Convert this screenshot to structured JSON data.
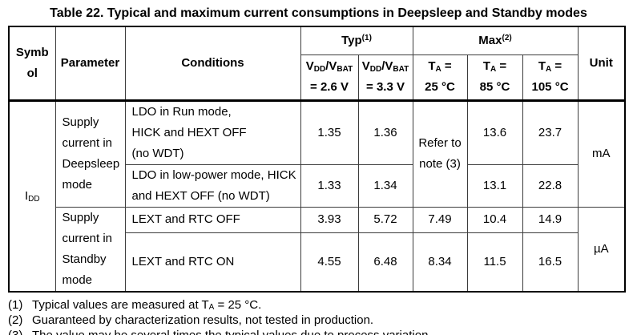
{
  "title": "Table 22. Typical and maximum current consumptions in Deepsleep and Standby modes",
  "table": {
    "header": {
      "symbol": "Symbol",
      "parameter": "Parameter",
      "conditions": "Conditions",
      "typ_group": {
        "label": "Typ",
        "note_ref": "(1)"
      },
      "max_group": {
        "label": "Max",
        "note_ref": "(2)"
      },
      "typ_cols": [
        {
          "sym_a": "V",
          "sub_a": "DD",
          "sym_b": "/V",
          "sub_b": "BAT",
          "value_line": "= 2.6 V"
        },
        {
          "sym_a": "V",
          "sub_a": "DD",
          "sym_b": "/V",
          "sub_b": "BAT",
          "value_line": "= 3.3 V"
        }
      ],
      "max_cols": [
        {
          "sym": "T",
          "sub": "A",
          "suffix": " =",
          "value_line": "25 °C"
        },
        {
          "sym": "T",
          "sub": "A",
          "suffix": " =",
          "value_line": "85 °C"
        },
        {
          "sym": "T",
          "sub": "A",
          "suffix": " =",
          "value_line": "105 °C"
        }
      ],
      "unit": "Unit"
    },
    "symbol_cell": {
      "main": "I",
      "sub": "DD"
    },
    "groups": [
      {
        "parameter": "Supply current in Deepsleep mode",
        "unit": "mA"
      },
      {
        "parameter": "Supply current in Standby mode",
        "unit": "µA"
      }
    ],
    "merged_max25": [
      "Refer to",
      "note (3)"
    ],
    "rows": [
      {
        "conditions": [
          "LDO in Run mode,",
          "HICK and HEXT OFF",
          "(no WDT)"
        ],
        "typ_26": "1.35",
        "typ_33": "1.36",
        "max_85": "13.6",
        "max_105": "23.7"
      },
      {
        "conditions": [
          "LDO in low-power mode, HICK",
          "and HEXT OFF (no WDT)"
        ],
        "typ_26": "1.33",
        "typ_33": "1.34",
        "max_85": "13.1",
        "max_105": "22.8"
      },
      {
        "conditions": [
          "LEXT and RTC OFF"
        ],
        "typ_26": "3.93",
        "typ_33": "5.72",
        "max_25": "7.49",
        "max_85": "10.4",
        "max_105": "14.9"
      },
      {
        "conditions": [
          "LEXT and RTC ON"
        ],
        "typ_26": "4.55",
        "typ_33": "6.48",
        "max_25": "8.34",
        "max_85": "11.5",
        "max_105": "16.5"
      }
    ],
    "footnotes": [
      {
        "num": "(1)",
        "pre": "Typical values are measured at T",
        "sub": "A",
        "post": " = 25 °C."
      },
      {
        "num": "(2)",
        "pre": "Guaranteed by characterization results, not tested in production.",
        "sub": "",
        "post": ""
      },
      {
        "num": "(3)",
        "pre": "The value may be several times the typical values due to process variation.",
        "sub": "",
        "post": ""
      }
    ]
  }
}
